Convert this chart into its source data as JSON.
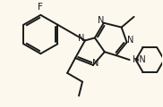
{
  "bg_color": "#fcf8ee",
  "line_color": "#1a1a1a",
  "line_width": 1.4,
  "figsize": [
    1.82,
    1.2
  ],
  "dpi": 100,
  "xlim": [
    0,
    182
  ],
  "ylim": [
    0,
    120
  ]
}
